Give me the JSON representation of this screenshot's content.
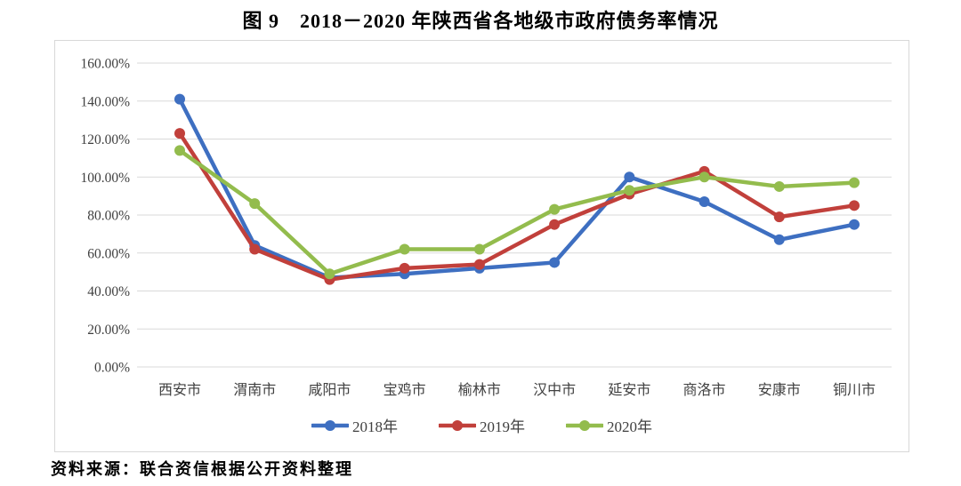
{
  "page": {
    "title": "图 9　2018－2020 年陕西省各地级市政府债务率情况",
    "source": "资料来源：联合资信根据公开资料整理"
  },
  "chart_data": {
    "type": "line",
    "title": "图 9 2018－2020 年陕西省各地级市政府债务率情况",
    "categories": [
      "西安市",
      "渭南市",
      "咸阳市",
      "宝鸡市",
      "榆林市",
      "汉中市",
      "延安市",
      "商洛市",
      "安康市",
      "铜川市"
    ],
    "series": [
      {
        "name": "2018年",
        "color": "#3E6FC1",
        "values": [
          141,
          64,
          47,
          49,
          52,
          55,
          100,
          87,
          67,
          75
        ]
      },
      {
        "name": "2019年",
        "color": "#C1403B",
        "values": [
          123,
          62,
          46,
          52,
          54,
          75,
          91,
          103,
          79,
          85
        ]
      },
      {
        "name": "2020年",
        "color": "#93BC4D",
        "values": [
          114,
          86,
          49,
          62,
          62,
          83,
          93,
          100,
          95,
          97
        ]
      }
    ],
    "xlabel": "",
    "ylabel": "",
    "ylim": [
      0,
      160
    ],
    "ytick_step": 20,
    "ytick_labels": [
      "0.00%",
      "20.00%",
      "40.00%",
      "60.00%",
      "80.00%",
      "100.00%",
      "120.00%",
      "140.00%",
      "160.00%"
    ],
    "grid": true,
    "legend_position": "bottom",
    "axis_text_color": "#404040",
    "grid_color": "#d9d9d9",
    "frame_color": "#d8d8d8"
  }
}
